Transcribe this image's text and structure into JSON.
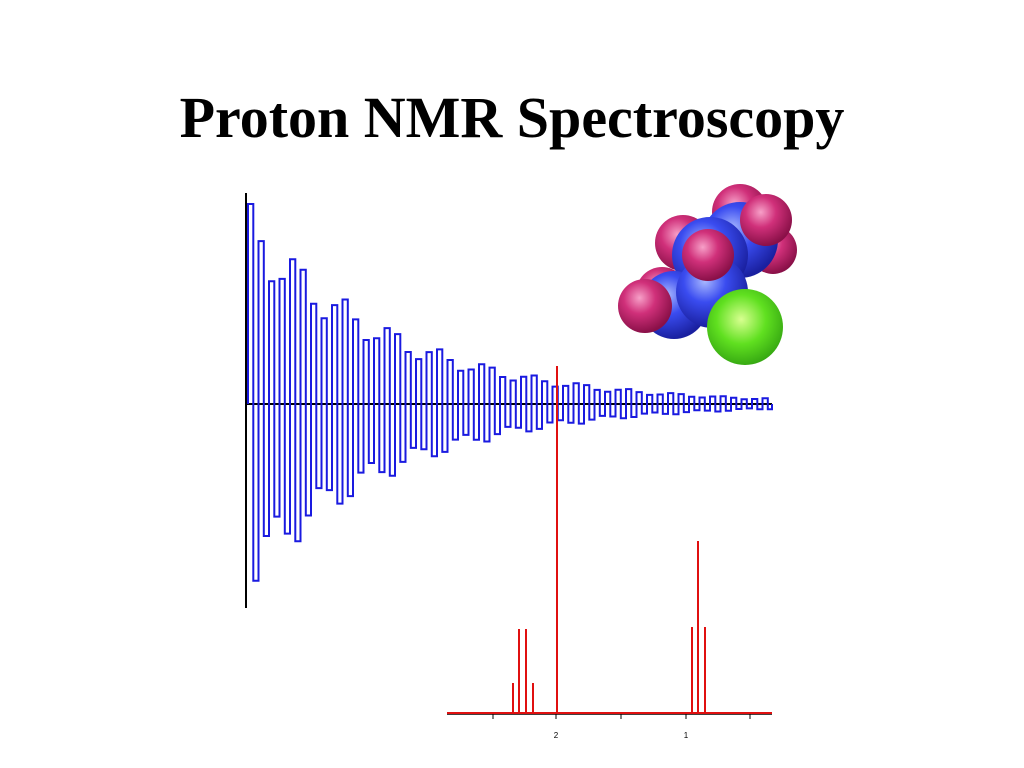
{
  "header": {
    "title": "Proton NMR Spectroscopy"
  },
  "spectrum": {
    "axis_labels": [
      "2",
      "1"
    ]
  }
}
